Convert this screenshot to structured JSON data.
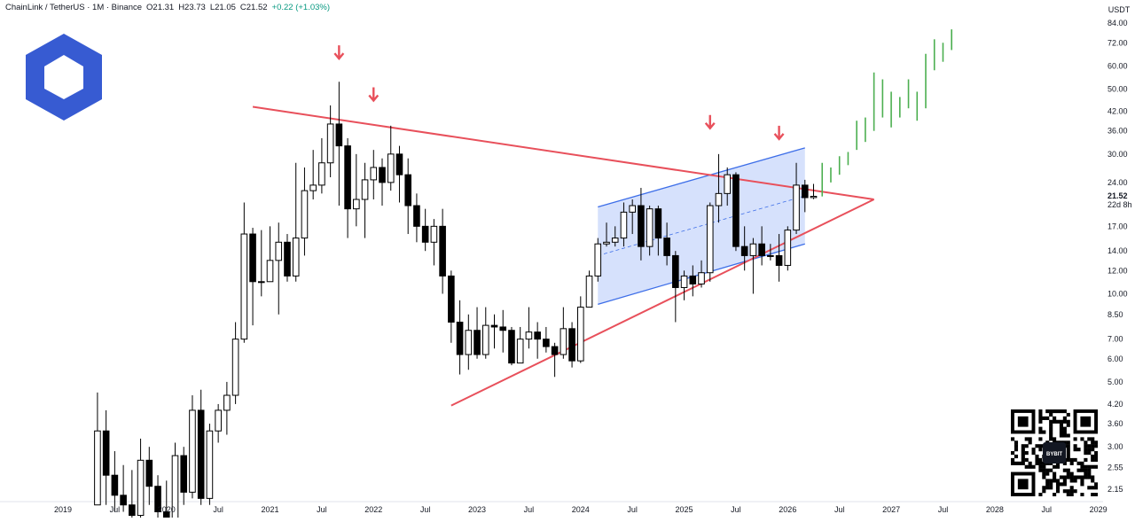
{
  "header": {
    "symbol": "ChainLink / TetherUS · 1M · Binance",
    "open": "O21.31",
    "high": "H23.73",
    "low": "L21.05",
    "close": "C21.52",
    "change": "+0.22 (+1.03%)"
  },
  "price_axis": {
    "currency": "USDT",
    "last_price": "21.52",
    "countdown": "22d 8h"
  },
  "watermark": {
    "text": "BYBIT"
  },
  "colors": {
    "up": "#ffffff",
    "down": "#000000",
    "wick": "#000000",
    "resistance": "#e8505b",
    "support": "#e8505b",
    "channel": "#3d6ee8",
    "channel_fill": "#cfdcfc",
    "projection": "#4caf50",
    "arrow": "#e8505b",
    "logo": "#375bd2"
  },
  "chart_data": {
    "type": "candlestick",
    "y_scale": "log",
    "ylim": [
      1.95,
      94
    ],
    "xlim": [
      "2018-11",
      "2028-12"
    ],
    "y_ticks": [
      {
        "v": 84,
        "label": "84.00"
      },
      {
        "v": 72,
        "label": "72.00"
      },
      {
        "v": 60,
        "label": "60.00"
      },
      {
        "v": 50,
        "label": "50.00"
      },
      {
        "v": 42,
        "label": "42.00"
      },
      {
        "v": 36,
        "label": "36.00"
      },
      {
        "v": 30,
        "label": "30.00"
      },
      {
        "v": 24,
        "label": "24.00"
      },
      {
        "v": 17,
        "label": "17.00"
      },
      {
        "v": 14,
        "label": "14.00"
      },
      {
        "v": 12,
        "label": "12.00"
      },
      {
        "v": 10,
        "label": "10.00"
      },
      {
        "v": 8.5,
        "label": "8.50"
      },
      {
        "v": 7,
        "label": "7.00"
      },
      {
        "v": 6,
        "label": "6.00"
      },
      {
        "v": 5,
        "label": "5.00"
      },
      {
        "v": 4.2,
        "label": "4.20"
      },
      {
        "v": 3.6,
        "label": "3.60"
      },
      {
        "v": 3,
        "label": "3.00"
      },
      {
        "v": 2.55,
        "label": "2.55"
      },
      {
        "v": 2.15,
        "label": "2.15"
      }
    ],
    "x_ticks": [
      {
        "d": "2019-01",
        "label": "2019"
      },
      {
        "d": "2019-07",
        "label": "Jul"
      },
      {
        "d": "2020-01",
        "label": "2020"
      },
      {
        "d": "2020-07",
        "label": "Jul"
      },
      {
        "d": "2021-01",
        "label": "2021"
      },
      {
        "d": "2021-07",
        "label": "Jul"
      },
      {
        "d": "2022-01",
        "label": "2022"
      },
      {
        "d": "2022-07",
        "label": "Jul"
      },
      {
        "d": "2023-01",
        "label": "2023"
      },
      {
        "d": "2023-07",
        "label": "Jul"
      },
      {
        "d": "2024-01",
        "label": "2024"
      },
      {
        "d": "2024-07",
        "label": "Jul"
      },
      {
        "d": "2025-01",
        "label": "2025"
      },
      {
        "d": "2025-07",
        "label": "Jul"
      },
      {
        "d": "2026-01",
        "label": "2026"
      },
      {
        "d": "2026-07",
        "label": "Jul"
      },
      {
        "d": "2027-01",
        "label": "2027"
      },
      {
        "d": "2027-07",
        "label": "Jul"
      },
      {
        "d": "2028-01",
        "label": "2028"
      },
      {
        "d": "2028-07",
        "label": "Jul"
      },
      {
        "d": "2029-01",
        "label": "2029"
      }
    ],
    "candles": [
      [
        "2019-05",
        1.9,
        3.4,
        4.6,
        1.9
      ],
      [
        "2019-06",
        3.4,
        2.4,
        4.0,
        1.9
      ],
      [
        "2019-07",
        2.4,
        2.05,
        2.9,
        1.8
      ],
      [
        "2019-08",
        2.05,
        1.9,
        2.6,
        1.8
      ],
      [
        "2019-09",
        1.9,
        1.75,
        2.5,
        1.6
      ],
      [
        "2019-10",
        1.75,
        2.7,
        3.2,
        1.7
      ],
      [
        "2019-11",
        2.7,
        2.2,
        3.0,
        1.9
      ],
      [
        "2019-12",
        2.2,
        1.8,
        2.4,
        1.6
      ],
      [
        "2020-01",
        1.8,
        1.5,
        2.3,
        1.4
      ],
      [
        "2020-02",
        1.5,
        2.8,
        3.1,
        1.5
      ],
      [
        "2020-03",
        2.8,
        2.1,
        3.0,
        1.9
      ],
      [
        "2020-04",
        2.1,
        4.0,
        4.5,
        2.0
      ],
      [
        "2020-05",
        4.0,
        2.0,
        4.7,
        1.9
      ],
      [
        "2020-06",
        2.0,
        3.4,
        3.6,
        1.9
      ],
      [
        "2020-07",
        3.4,
        4.0,
        4.2,
        3.1
      ],
      [
        "2020-08",
        4.0,
        4.5,
        5.0,
        3.3
      ],
      [
        "2020-09",
        4.5,
        7.0,
        8.0,
        4.2
      ],
      [
        "2020-10",
        7.0,
        16.0,
        20.5,
        6.8
      ],
      [
        "2020-11",
        16.0,
        11.0,
        16.8,
        7.8
      ],
      [
        "2020-12",
        11.0,
        11.0,
        16.5,
        9.8
      ],
      [
        "2020-13",
        11.0,
        13.0,
        17.0,
        11.0
      ],
      [
        "2021-02",
        13.0,
        15.0,
        17.5,
        8.5
      ],
      [
        "2021-03",
        15.0,
        11.5,
        16.0,
        11.0
      ],
      [
        "2021-04",
        11.5,
        15.5,
        28.0,
        11.0
      ],
      [
        "2021-05",
        15.5,
        22.5,
        27.0,
        13.5
      ],
      [
        "2021-06",
        22.5,
        23.5,
        31.0,
        21.0
      ],
      [
        "2021-07",
        23.5,
        28.0,
        34.0,
        22.0
      ],
      [
        "2021-08",
        28.0,
        38.0,
        44.0,
        25.0
      ],
      [
        "2021-09",
        38.0,
        32.0,
        53.0,
        20.0
      ],
      [
        "2021-10",
        32.0,
        19.5,
        34.0,
        15.5
      ],
      [
        "2021-11",
        19.5,
        21.0,
        30.0,
        17.0
      ],
      [
        "2021-12",
        21.0,
        24.5,
        28.0,
        15.5
      ],
      [
        "2022-01",
        24.5,
        27.0,
        31.0,
        21.0
      ],
      [
        "2022-02",
        27.0,
        24.0,
        29.0,
        20.0
      ],
      [
        "2022-03",
        24.0,
        30.0,
        37.5,
        22.5
      ],
      [
        "2022-04",
        30.0,
        25.5,
        32.0,
        20.5
      ],
      [
        "2022-05",
        25.5,
        20.0,
        29.0,
        16.0
      ],
      [
        "2022-06",
        20.0,
        17.0,
        22.0,
        15.0
      ],
      [
        "2022-07",
        17.0,
        15.0,
        19.5,
        14.0
      ],
      [
        "2022-08",
        15.0,
        17.0,
        18.0,
        12.5
      ],
      [
        "2022-09",
        17.0,
        11.5,
        19.5,
        10.0
      ],
      [
        "2022-10",
        11.5,
        8.0,
        12.0,
        6.8
      ],
      [
        "2022-11",
        8.0,
        6.2,
        9.5,
        5.3
      ],
      [
        "2022-12",
        6.2,
        7.5,
        8.5,
        5.5
      ],
      [
        "2023-01",
        7.5,
        6.2,
        9.0,
        6.0
      ],
      [
        "2023-02",
        6.2,
        7.8,
        9.0,
        6.0
      ],
      [
        "2023-03",
        7.8,
        7.7,
        8.5,
        6.5
      ],
      [
        "2023-04",
        7.7,
        7.5,
        8.8,
        6.3
      ],
      [
        "2023-05",
        7.5,
        5.8,
        7.7,
        5.7
      ],
      [
        "2023-06",
        5.8,
        7.0,
        7.7,
        5.8
      ],
      [
        "2023-07",
        7.0,
        7.4,
        9.0,
        6.5
      ],
      [
        "2023-08",
        7.4,
        7.0,
        8.0,
        6.0
      ],
      [
        "2023-09",
        7.0,
        6.6,
        7.7,
        6.3
      ],
      [
        "2023-10",
        6.6,
        6.2,
        6.8,
        5.2
      ],
      [
        "2023-11",
        6.2,
        7.6,
        9.0,
        6.0
      ],
      [
        "2023-12",
        7.6,
        5.9,
        8.0,
        5.6
      ],
      [
        "2023-13",
        5.9,
        9.0,
        9.8,
        5.8
      ],
      [
        "2024-02",
        9.0,
        11.5,
        12.0,
        9.0
      ],
      [
        "2024-03",
        11.5,
        14.8,
        15.5,
        11.0
      ],
      [
        "2024-04",
        14.8,
        15.0,
        17.5,
        14.5
      ],
      [
        "2024-05",
        15.0,
        15.5,
        17.0,
        14.5
      ],
      [
        "2024-06",
        15.5,
        19.0,
        20.5,
        14.5
      ],
      [
        "2024-07",
        19.0,
        20.0,
        21.0,
        16.0
      ],
      [
        "2024-08",
        20.0,
        14.5,
        23.0,
        13.0
      ],
      [
        "2024-09",
        14.5,
        19.5,
        20.0,
        13.5
      ],
      [
        "2024-10",
        19.5,
        15.5,
        20.0,
        13.5
      ],
      [
        "2024-11",
        15.5,
        13.5,
        17.5,
        12.5
      ],
      [
        "2024-12",
        13.5,
        10.5,
        14.0,
        8.0
      ],
      [
        "2025-01",
        10.5,
        11.5,
        12.0,
        9.5
      ],
      [
        "2025-02",
        11.5,
        10.8,
        12.5,
        9.8
      ],
      [
        "2025-03",
        10.8,
        11.8,
        13.0,
        10.5
      ],
      [
        "2025-04",
        11.8,
        20.0,
        20.5,
        11.0
      ],
      [
        "2025-05",
        20.0,
        22.0,
        30.0,
        17.5
      ],
      [
        "2025-06",
        22.0,
        25.5,
        27.0,
        20.0
      ],
      [
        "2025-07",
        25.5,
        14.5,
        26.0,
        14.0
      ],
      [
        "2025-08",
        14.5,
        13.5,
        17.0,
        12.0
      ],
      [
        "2025-09",
        13.5,
        14.8,
        15.5,
        10.0
      ],
      [
        "2025-10",
        14.8,
        13.5,
        17.0,
        12.5
      ],
      [
        "2025-11",
        13.5,
        13.5,
        14.8,
        13.0
      ],
      [
        "2025-12",
        13.5,
        12.5,
        16.0,
        11.0
      ],
      [
        "2026-01",
        12.5,
        16.5,
        17.0,
        12.0
      ],
      [
        "2026-02",
        16.5,
        23.5,
        28.0,
        16.0
      ],
      [
        "2026-03",
        23.5,
        21.3,
        24.5,
        19.0
      ],
      [
        "2026-04",
        21.31,
        21.52,
        23.73,
        21.05
      ]
    ],
    "projection": [
      [
        "2026-05",
        21.5,
        28.0
      ],
      [
        "2026-06",
        24.0,
        27.0
      ],
      [
        "2026-07",
        25.5,
        29.5
      ],
      [
        "2026-08",
        27.5,
        30.5
      ],
      [
        "2026-09",
        31.0,
        39.0
      ],
      [
        "2026-10",
        33.0,
        40.0
      ],
      [
        "2026-11",
        36.0,
        57.0
      ],
      [
        "2026-12",
        40.0,
        54.0
      ],
      [
        "2027-01",
        37.0,
        49.0
      ],
      [
        "2027-02",
        40.0,
        47.0
      ],
      [
        "2027-03",
        43.0,
        54.0
      ],
      [
        "2027-04",
        39.0,
        49.0
      ],
      [
        "2027-05",
        43.0,
        66.0
      ],
      [
        "2027-06",
        58.0,
        74.0
      ],
      [
        "2027-07",
        62.0,
        72.0
      ],
      [
        "2027-08",
        68.0,
        80.0
      ]
    ],
    "trendlines": [
      {
        "name": "resistance",
        "from": [
          "2020-11",
          43.5
        ],
        "to": [
          "2026-11",
          21.0
        ]
      },
      {
        "name": "support",
        "from": [
          "2022-10",
          4.15
        ],
        "to": [
          "2026-11",
          21.0
        ]
      }
    ],
    "channel": {
      "from_top": [
        "2024-03",
        19.8
      ],
      "to_top": [
        "2026-03",
        31.5
      ],
      "from_bot": [
        "2024-03",
        9.2
      ],
      "to_bot": [
        "2026-03",
        14.8
      ]
    },
    "arrows": [
      [
        "2021-09",
        64
      ],
      [
        "2022-01",
        46
      ],
      [
        "2025-04",
        37
      ],
      [
        "2025-12",
        34
      ]
    ]
  }
}
